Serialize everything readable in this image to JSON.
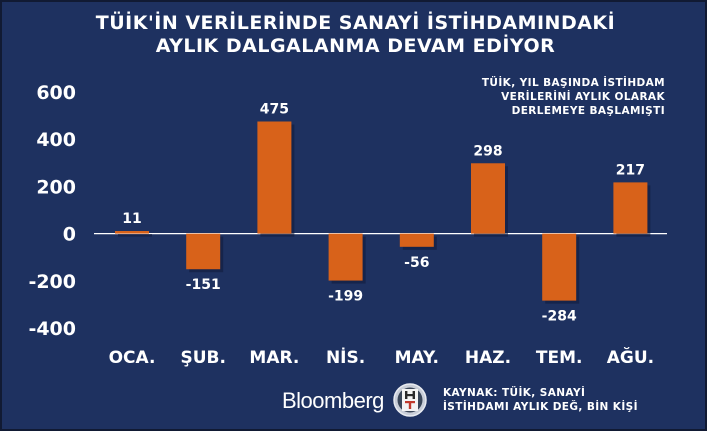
{
  "title_line1": "TÜİK'İN VERİLERİNDE SANAYİ İSTİHDAMINDAKİ",
  "title_line2": "AYLIK DALGALANMA DEVAM EDİYOR",
  "note_line1": "TÜİK, YIL BAŞINDA İSTİHDAM",
  "note_line2": "VERİLERİNİ AYLIK OLARAK",
  "note_line3": "DERLEMEYE BAŞLAMIŞTI",
  "source_line1": "KAYNAK: TÜİK, SANAYİ",
  "source_line2": "İSTİHDAMI AYLIK DEĞ, BİN KİŞİ",
  "brand": "Bloomberg",
  "badge": "HT",
  "colors": {
    "background": "#1e3160",
    "bar": "#d8621a",
    "text": "#ffffff"
  },
  "chart_data": {
    "type": "bar",
    "categories": [
      "OCA.",
      "ŞUB.",
      "MAR.",
      "NİS.",
      "MAY.",
      "HAZ.",
      "TEM.",
      "AĞU."
    ],
    "values": [
      11,
      -151,
      475,
      -199,
      -56,
      298,
      -284,
      217
    ],
    "value_labels": [
      "11",
      "-151",
      "475",
      "-199",
      "-56",
      "298",
      "-284",
      "217"
    ],
    "ylim": [
      -400,
      600
    ],
    "yticks": [
      600,
      400,
      200,
      0,
      -200,
      -400
    ],
    "ytick_labels": [
      "600",
      "400",
      "200",
      "0",
      "-200",
      "-400"
    ],
    "grid": false
  }
}
